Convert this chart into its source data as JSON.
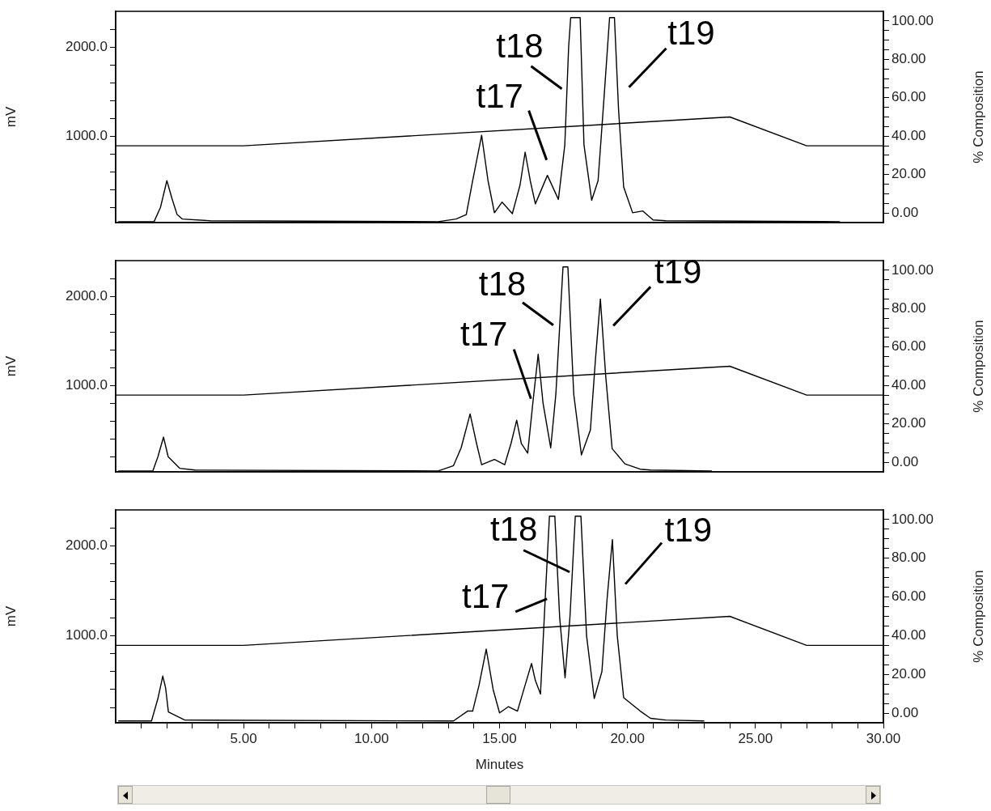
{
  "chart_data": [
    {
      "type": "line",
      "ylabel": "mV",
      "y2label": "% Composition",
      "xlim": [
        0,
        30
      ],
      "ylim": [
        30,
        2400
      ],
      "y2lim": [
        -5,
        105
      ],
      "grid": false,
      "legend": false,
      "tick_labels": [
        "y",
        "y2"
      ],
      "yticks": [
        {
          "value": 200,
          "label": null
        },
        {
          "value": 400,
          "label": null
        },
        {
          "value": 600,
          "label": null
        },
        {
          "value": 800,
          "label": null
        },
        {
          "value": 1000,
          "label": "1000.0"
        },
        {
          "value": 1200,
          "label": null
        },
        {
          "value": 1400,
          "label": null
        },
        {
          "value": 1600,
          "label": null
        },
        {
          "value": 1800,
          "label": null
        },
        {
          "value": 2000,
          "label": "2000.0"
        },
        {
          "value": 2200,
          "label": null
        }
      ],
      "y2ticks": [
        {
          "value": 0,
          "label": "0.00"
        },
        {
          "value": 5,
          "label": null
        },
        {
          "value": 10,
          "label": null
        },
        {
          "value": 15,
          "label": null
        },
        {
          "value": 20,
          "label": "20.00"
        },
        {
          "value": 25,
          "label": null
        },
        {
          "value": 30,
          "label": null
        },
        {
          "value": 35,
          "label": null
        },
        {
          "value": 40,
          "label": "40.00"
        },
        {
          "value": 45,
          "label": null
        },
        {
          "value": 50,
          "label": null
        },
        {
          "value": 55,
          "label": null
        },
        {
          "value": 60,
          "label": "60.00"
        },
        {
          "value": 65,
          "label": null
        },
        {
          "value": 70,
          "label": null
        },
        {
          "value": 75,
          "label": null
        },
        {
          "value": 80,
          "label": "80.00"
        },
        {
          "value": 85,
          "label": null
        },
        {
          "value": 90,
          "label": null
        },
        {
          "value": 95,
          "label": null
        },
        {
          "value": 100,
          "label": "100.00"
        }
      ],
      "series": [
        {
          "color": "#000000",
          "x": [
            0.1,
            1.5,
            1.75,
            2.0,
            2.2,
            2.4,
            2.6,
            3.7,
            12.6,
            13.3,
            13.7,
            13.95,
            14.3,
            14.55,
            14.8,
            15.1,
            15.5,
            15.8,
            16.0,
            16.2,
            16.4,
            16.87,
            17.3,
            17.55,
            17.7,
            17.78,
            18.15,
            18.3,
            18.6,
            18.85,
            19.1,
            19.3,
            19.49,
            19.65,
            19.85,
            20.2,
            20.6,
            21.0,
            21.5,
            28.3
          ],
          "values": [
            40,
            40,
            200,
            500,
            300,
            120,
            70,
            50,
            40,
            70,
            120,
            500,
            1010,
            500,
            140,
            260,
            130,
            450,
            820,
            500,
            240,
            560,
            290,
            900,
            2000,
            2330,
            2330,
            900,
            280,
            500,
            1500,
            2330,
            2330,
            1300,
            430,
            140,
            160,
            60,
            50,
            40
          ]
        },
        {
          "color": "#000000",
          "axis": "y2",
          "x": [
            0,
            5,
            24,
            27,
            30
          ],
          "values": [
            35,
            35,
            50,
            35,
            35
          ]
        }
      ],
      "annotations": [
        {
          "text": "t17",
          "x": 16.87,
          "y": 560
        },
        {
          "text": "t18",
          "x": 17.78,
          "y": 2330
        },
        {
          "text": "t19",
          "x": 19.49,
          "y": 2330
        }
      ]
    },
    {
      "type": "line",
      "ylabel": "mV",
      "y2label": "% Composition",
      "xlim": [
        0,
        30
      ],
      "ylim": [
        30,
        2400
      ],
      "y2lim": [
        -5,
        105
      ],
      "grid": false,
      "legend": false,
      "tick_labels": [
        "y",
        "y2"
      ],
      "yticks": [
        {
          "value": 200,
          "label": null
        },
        {
          "value": 400,
          "label": null
        },
        {
          "value": 600,
          "label": null
        },
        {
          "value": 800,
          "label": null
        },
        {
          "value": 1000,
          "label": "1000.0"
        },
        {
          "value": 1200,
          "label": null
        },
        {
          "value": 1400,
          "label": null
        },
        {
          "value": 1600,
          "label": null
        },
        {
          "value": 1800,
          "label": null
        },
        {
          "value": 2000,
          "label": "2000.0"
        },
        {
          "value": 2200,
          "label": null
        }
      ],
      "y2ticks": [
        {
          "value": 0,
          "label": "0.00"
        },
        {
          "value": 5,
          "label": null
        },
        {
          "value": 10,
          "label": null
        },
        {
          "value": 15,
          "label": null
        },
        {
          "value": 20,
          "label": "20.00"
        },
        {
          "value": 25,
          "label": null
        },
        {
          "value": 30,
          "label": null
        },
        {
          "value": 35,
          "label": null
        },
        {
          "value": 40,
          "label": "40.00"
        },
        {
          "value": 45,
          "label": null
        },
        {
          "value": 50,
          "label": null
        },
        {
          "value": 55,
          "label": null
        },
        {
          "value": 60,
          "label": "60.00"
        },
        {
          "value": 65,
          "label": null
        },
        {
          "value": 70,
          "label": null
        },
        {
          "value": 75,
          "label": null
        },
        {
          "value": 80,
          "label": "80.00"
        },
        {
          "value": 85,
          "label": null
        },
        {
          "value": 90,
          "label": null
        },
        {
          "value": 95,
          "label": null
        },
        {
          "value": 100,
          "label": "100.00"
        }
      ],
      "series": [
        {
          "color": "#000000",
          "x": [
            0.1,
            1.45,
            1.65,
            1.87,
            2.05,
            2.5,
            3.1,
            12.6,
            13.2,
            13.5,
            13.85,
            14.1,
            14.3,
            14.8,
            15.2,
            15.45,
            15.67,
            15.85,
            16.1,
            16.3,
            16.51,
            16.7,
            17.0,
            17.2,
            17.48,
            17.67,
            17.9,
            18.2,
            18.55,
            18.75,
            18.94,
            19.15,
            19.4,
            19.9,
            20.5,
            20.9,
            23.3
          ],
          "values": [
            40,
            40,
            200,
            420,
            200,
            70,
            50,
            40,
            100,
            300,
            680,
            350,
            110,
            170,
            110,
            350,
            610,
            350,
            240,
            800,
            1350,
            800,
            300,
            900,
            2330,
            2330,
            900,
            220,
            500,
            1300,
            1970,
            1100,
            290,
            120,
            60,
            50,
            40
          ]
        },
        {
          "color": "#000000",
          "axis": "y2",
          "x": [
            0,
            5,
            24,
            27,
            30
          ],
          "values": [
            35,
            35,
            50,
            35,
            35
          ]
        }
      ],
      "annotations": [
        {
          "text": "t17",
          "x": 16.51,
          "y": 1350
        },
        {
          "text": "t18",
          "x": 17.48,
          "y": 2330
        },
        {
          "text": "t19",
          "x": 18.94,
          "y": 1970
        }
      ]
    },
    {
      "type": "line",
      "ylabel": "mV",
      "y2label": "% Composition",
      "xlabel": "Minutes",
      "xlim": [
        0,
        30
      ],
      "ylim": [
        30,
        2400
      ],
      "y2lim": [
        -5,
        105
      ],
      "grid": false,
      "legend": false,
      "xticks": [
        {
          "value": 1,
          "label": null
        },
        {
          "value": 2,
          "label": null
        },
        {
          "value": 3,
          "label": null
        },
        {
          "value": 4,
          "label": null
        },
        {
          "value": 5,
          "label": "5.00"
        },
        {
          "value": 6,
          "label": null
        },
        {
          "value": 7,
          "label": null
        },
        {
          "value": 8,
          "label": null
        },
        {
          "value": 9,
          "label": null
        },
        {
          "value": 10,
          "label": "10.00"
        },
        {
          "value": 11,
          "label": null
        },
        {
          "value": 12,
          "label": null
        },
        {
          "value": 13,
          "label": null
        },
        {
          "value": 14,
          "label": null
        },
        {
          "value": 15,
          "label": "15.00"
        },
        {
          "value": 16,
          "label": null
        },
        {
          "value": 17,
          "label": null
        },
        {
          "value": 18,
          "label": null
        },
        {
          "value": 19,
          "label": null
        },
        {
          "value": 20,
          "label": "20.00"
        },
        {
          "value": 21,
          "label": null
        },
        {
          "value": 22,
          "label": null
        },
        {
          "value": 23,
          "label": null
        },
        {
          "value": 24,
          "label": null
        },
        {
          "value": 25,
          "label": "25.00"
        },
        {
          "value": 26,
          "label": null
        },
        {
          "value": 27,
          "label": null
        },
        {
          "value": 28,
          "label": null
        },
        {
          "value": 29,
          "label": null
        },
        {
          "value": 30,
          "label": "30.00"
        }
      ],
      "yticks": [
        {
          "value": 200,
          "label": null
        },
        {
          "value": 400,
          "label": null
        },
        {
          "value": 600,
          "label": null
        },
        {
          "value": 800,
          "label": null
        },
        {
          "value": 1000,
          "label": "1000.0"
        },
        {
          "value": 1200,
          "label": null
        },
        {
          "value": 1400,
          "label": null
        },
        {
          "value": 1600,
          "label": null
        },
        {
          "value": 1800,
          "label": null
        },
        {
          "value": 2000,
          "label": "2000.0"
        },
        {
          "value": 2200,
          "label": null
        }
      ],
      "y2ticks": [
        {
          "value": 0,
          "label": "0.00"
        },
        {
          "value": 5,
          "label": null
        },
        {
          "value": 10,
          "label": null
        },
        {
          "value": 15,
          "label": null
        },
        {
          "value": 20,
          "label": "20.00"
        },
        {
          "value": 25,
          "label": null
        },
        {
          "value": 30,
          "label": null
        },
        {
          "value": 35,
          "label": null
        },
        {
          "value": 40,
          "label": "40.00"
        },
        {
          "value": 45,
          "label": null
        },
        {
          "value": 50,
          "label": null
        },
        {
          "value": 55,
          "label": null
        },
        {
          "value": 60,
          "label": "60.00"
        },
        {
          "value": 65,
          "label": null
        },
        {
          "value": 70,
          "label": null
        },
        {
          "value": 75,
          "label": null
        },
        {
          "value": 80,
          "label": "80.00"
        },
        {
          "value": 85,
          "label": null
        },
        {
          "value": 90,
          "label": null
        },
        {
          "value": 95,
          "label": null
        },
        {
          "value": 100,
          "label": "100.00"
        }
      ],
      "series": [
        {
          "color": "#000000",
          "x": [
            0.1,
            1.4,
            1.65,
            1.84,
            1.95,
            2.06,
            2.7,
            13.2,
            13.75,
            13.95,
            14.2,
            14.48,
            14.75,
            15.0,
            15.35,
            15.7,
            16.0,
            16.25,
            16.4,
            16.6,
            16.8,
            16.95,
            17.16,
            17.35,
            17.56,
            17.75,
            17.96,
            18.18,
            18.4,
            18.7,
            19.0,
            19.2,
            19.41,
            19.6,
            19.85,
            20.5,
            20.9,
            21.5,
            23.0
          ],
          "values": [
            50,
            50,
            300,
            550,
            420,
            150,
            60,
            50,
            160,
            160,
            450,
            850,
            400,
            140,
            210,
            160,
            450,
            690,
            500,
            350,
            1500,
            2330,
            2330,
            1200,
            530,
            1200,
            2330,
            2330,
            1000,
            300,
            600,
            1400,
            2070,
            1000,
            310,
            160,
            80,
            60,
            50
          ]
        },
        {
          "color": "#000000",
          "axis": "y2",
          "x": [
            0,
            5,
            24,
            27,
            30
          ],
          "values": [
            35,
            35,
            50,
            35,
            35
          ]
        }
      ],
      "annotations": [
        {
          "text": "t17",
          "x": 16.95,
          "y": 2330
        },
        {
          "text": "t18",
          "x": 17.96,
          "y": 2330
        },
        {
          "text": "t19",
          "x": 19.41,
          "y": 2070
        }
      ]
    }
  ]
}
